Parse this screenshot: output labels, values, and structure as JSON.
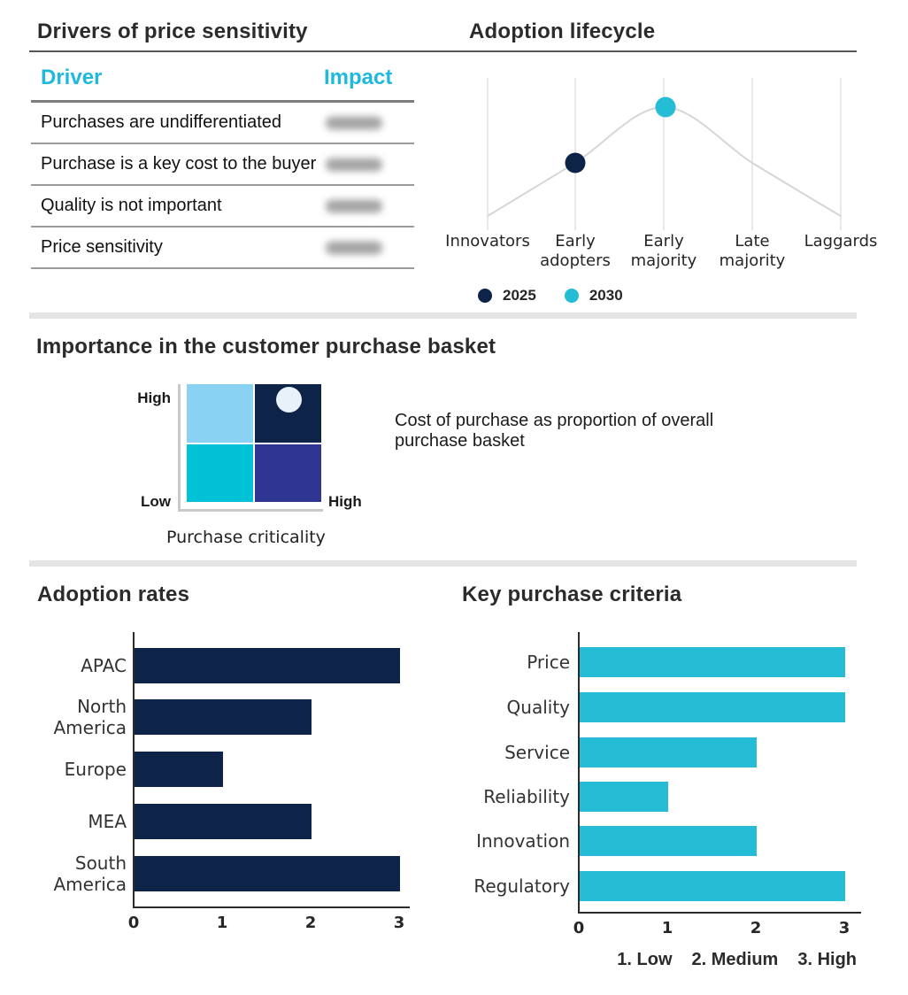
{
  "palette": {
    "navy": "#0D2347",
    "cyan": "#25BCD5",
    "table_header_cyan": "#1FB9DF",
    "matrix_light_blue": "#8AD2F4",
    "matrix_teal_cyan": "#00C1D6",
    "matrix_indigo": "#2F3691",
    "curve_gray": "#D6D6D6",
    "divider_gray": "#E4E4E4"
  },
  "chart_data": [
    {
      "type": "table",
      "title": "Drivers of price sensitivity",
      "columns": [
        "Driver",
        "Impact"
      ],
      "rows": [
        {
          "driver": "Purchases are undifferentiated"
        },
        {
          "driver": "Purchase is a key cost to the buyer"
        },
        {
          "driver": "Quality is not important"
        },
        {
          "driver": "Price sensitivity"
        }
      ],
      "impact_values_note": "impact cells are blurred/illegible in source image"
    },
    {
      "type": "line",
      "title": "Adoption lifecycle",
      "categories": [
        "Innovators",
        "Early adopters",
        "Early majority",
        "Late majority",
        "Laggards"
      ],
      "curve": "gray bell curve spanning Innovators to Laggards, peak at Early majority",
      "series": [
        {
          "name": "2025",
          "stage": "Early adopters",
          "color": "#0D2347"
        },
        {
          "name": "2030",
          "stage": "Early majority",
          "color": "#25BCD5"
        }
      ],
      "legend_position": "bottom"
    },
    {
      "type": "heatmap",
      "title": "Importance in the customer purchase basket",
      "xlabel": "Purchase criticality",
      "axis_labels": {
        "y_top": "High",
        "y_bottom": "Low",
        "x_right": "High"
      },
      "quadrant_colors": {
        "top_left": "#8AD2F4",
        "top_right": "#0D2347",
        "bottom_left": "#00C1D6",
        "bottom_right": "#2F3691"
      },
      "marker": {
        "quadrant": "top_right",
        "shape": "circle",
        "color": "#E8F1FA"
      },
      "annotation": "Cost of purchase as proportion of overall purchase basket"
    },
    {
      "type": "bar",
      "title": "Adoption rates",
      "orientation": "horizontal",
      "categories": [
        "APAC",
        "North America",
        "Europe",
        "MEA",
        "South America"
      ],
      "values": [
        3,
        2,
        1,
        2,
        3
      ],
      "xlim": [
        0,
        3
      ],
      "xticks": [
        0,
        1,
        2,
        3
      ],
      "bar_color": "#0D2347"
    },
    {
      "type": "bar",
      "title": "Key purchase criteria",
      "orientation": "horizontal",
      "categories": [
        "Price",
        "Quality",
        "Service",
        "Reliability",
        "Innovation",
        "Regulatory"
      ],
      "values": [
        3,
        3,
        2,
        1,
        2,
        3
      ],
      "xlim": [
        0,
        3
      ],
      "xticks": [
        0,
        1,
        2,
        3
      ],
      "bar_color": "#25BCD5",
      "scale_note_items": [
        "1. Low",
        "2. Medium",
        "3. High"
      ]
    }
  ]
}
